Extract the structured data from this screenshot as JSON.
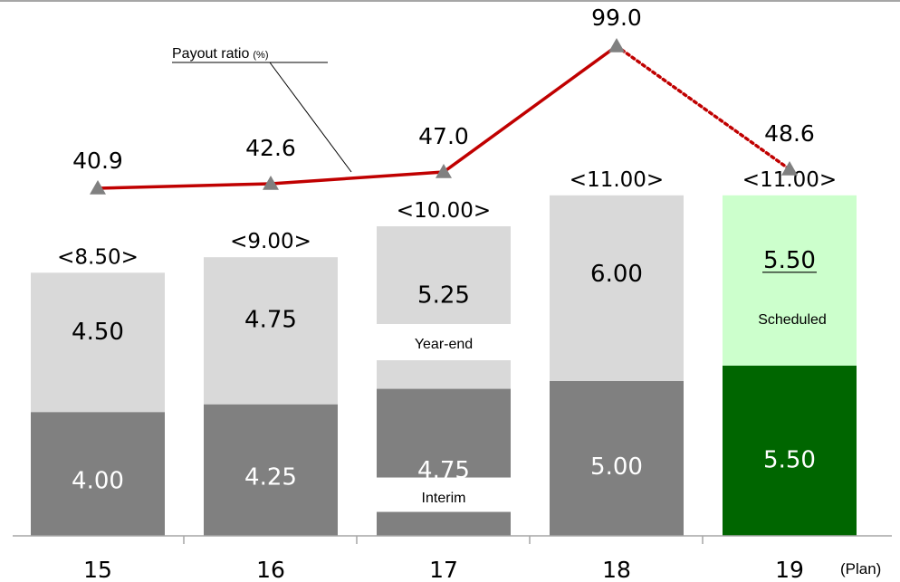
{
  "chart_data": {
    "type": "bar",
    "categories": [
      "15",
      "16",
      "17",
      "18",
      "19"
    ],
    "category_suffix": "(Plan)",
    "series": [
      {
        "name": "Interim",
        "values": [
          4.0,
          4.25,
          4.75,
          5.0,
          5.5
        ],
        "labels": [
          "4.00",
          "4.25",
          "4.75",
          "5.00",
          "5.50"
        ]
      },
      {
        "name": "Year-end",
        "values": [
          4.5,
          4.75,
          5.25,
          6.0,
          5.5
        ],
        "labels": [
          "4.50",
          "4.75",
          "5.25",
          "6.00",
          "5.50"
        ]
      }
    ],
    "totals": [
      "<8.50>",
      "<9.00>",
      "<10.00>",
      "<11.00>",
      "<11.00>"
    ],
    "scheduled_label": "Scheduled",
    "ylim": [
      0,
      11
    ],
    "line": {
      "name": "Payout ratio",
      "unit": "(%)",
      "values": [
        40.9,
        42.6,
        47.0,
        99.0,
        48.6
      ],
      "labels": [
        "40.9",
        "42.6",
        "47.0",
        "99.0",
        "48.6"
      ],
      "last_segment_dotted": true
    },
    "colors": {
      "interim": "#808080",
      "yearend": "#d9d9d9",
      "plan_interim": "#006600",
      "plan_yearend": "#ccffcc",
      "line": "#c00000",
      "marker": "#808080",
      "seg_text_light": "#ffffff",
      "seg_text_dark": "#000000"
    }
  }
}
